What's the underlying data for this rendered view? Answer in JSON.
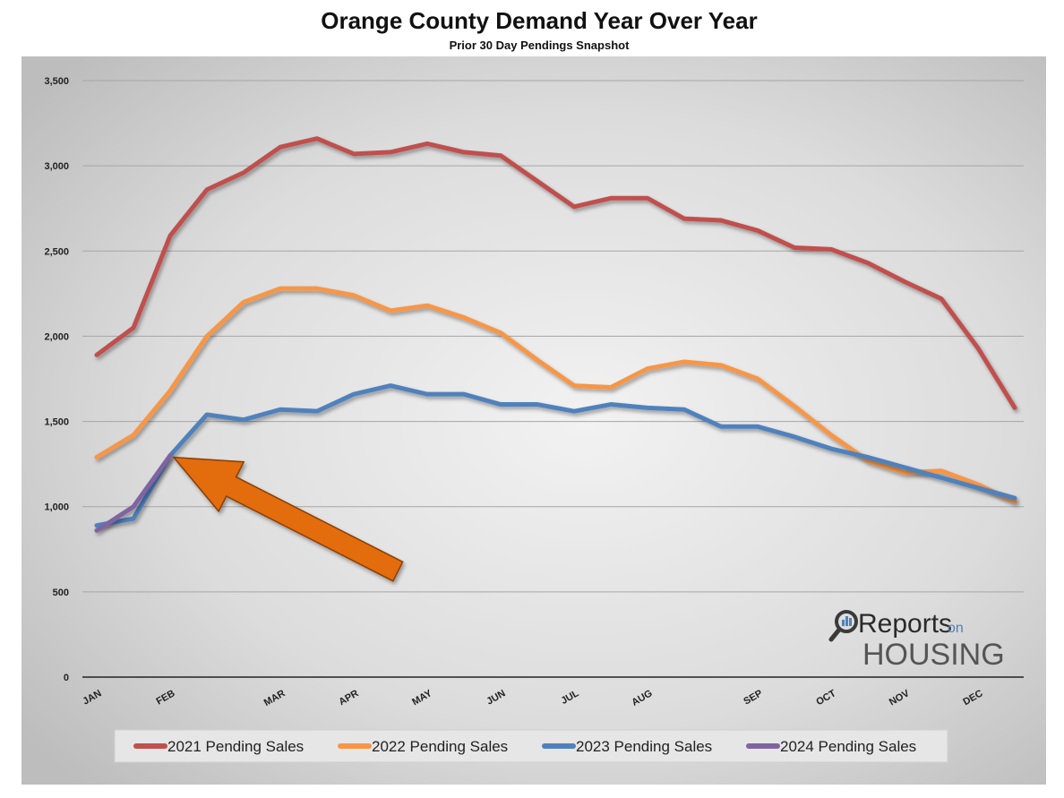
{
  "chart_data": {
    "type": "line",
    "title": "Orange County Demand Year Over Year",
    "subtitle": "Prior 30 Day Pendings Snapshot",
    "xlabel": "",
    "ylabel": "",
    "ylim": [
      0,
      3500
    ],
    "y_ticks": [
      0,
      500,
      1000,
      1500,
      2000,
      2500,
      3000,
      3500
    ],
    "y_tick_labels": [
      "0",
      "500",
      "1,000",
      "1,500",
      "2,000",
      "2,500",
      "3,000",
      "3,500"
    ],
    "x_tick_labels": [
      {
        "label": "JAN",
        "week": 0
      },
      {
        "label": "FEB",
        "week": 2
      },
      {
        "label": "MAR",
        "week": 5
      },
      {
        "label": "APR",
        "week": 7
      },
      {
        "label": "MAY",
        "week": 9
      },
      {
        "label": "JUN",
        "week": 11
      },
      {
        "label": "JUL",
        "week": 13
      },
      {
        "label": "AUG",
        "week": 15
      },
      {
        "label": "SEP",
        "week": 18
      },
      {
        "label": "OCT",
        "week": 20
      },
      {
        "label": "NOV",
        "week": 22
      },
      {
        "label": "DEC",
        "week": 24
      }
    ],
    "x_weeks": [
      0,
      1,
      2,
      3,
      4,
      5,
      6,
      7,
      8,
      9,
      10,
      11,
      12,
      13,
      14,
      15,
      16,
      17,
      18,
      19,
      20,
      21,
      22,
      23,
      24,
      25
    ],
    "series": [
      {
        "name": "2021 Pending Sales",
        "color": "#c0504d",
        "values": [
          1890,
          2050,
          2590,
          2860,
          2960,
          3110,
          3160,
          3070,
          3080,
          3130,
          3080,
          3060,
          2910,
          2760,
          2810,
          2810,
          2690,
          2680,
          2620,
          2520,
          2510,
          2430,
          2320,
          2220,
          1930,
          1580
        ]
      },
      {
        "name": "2022 Pending Sales",
        "color": "#f79646",
        "values": [
          1290,
          1420,
          1680,
          2000,
          2200,
          2280,
          2280,
          2240,
          2150,
          2180,
          2110,
          2020,
          1860,
          1710,
          1700,
          1810,
          1850,
          1830,
          1750,
          1590,
          1420,
          1270,
          1200,
          1210,
          1130,
          1030
        ]
      },
      {
        "name": "2023 Pending Sales",
        "color": "#4f81bd",
        "values": [
          890,
          930,
          1300,
          1540,
          1510,
          1570,
          1560,
          1660,
          1710,
          1660,
          1660,
          1600,
          1600,
          1560,
          1600,
          1580,
          1570,
          1470,
          1470,
          1410,
          1340,
          1290,
          1230,
          1170,
          1110,
          1050
        ]
      },
      {
        "name": "2024 Pending Sales",
        "color": "#8064a2",
        "values": [
          860,
          1000,
          1300
        ]
      }
    ],
    "annotations": [
      {
        "type": "arrow",
        "color": "#e36c0a",
        "from": {
          "week": 8.2,
          "value": 620
        },
        "to": {
          "week": 2,
          "value": 1300
        }
      }
    ],
    "legend_position": "bottom"
  },
  "logo": {
    "line1": "Reports",
    "line1_small": "on",
    "line2": "HOUSING"
  }
}
